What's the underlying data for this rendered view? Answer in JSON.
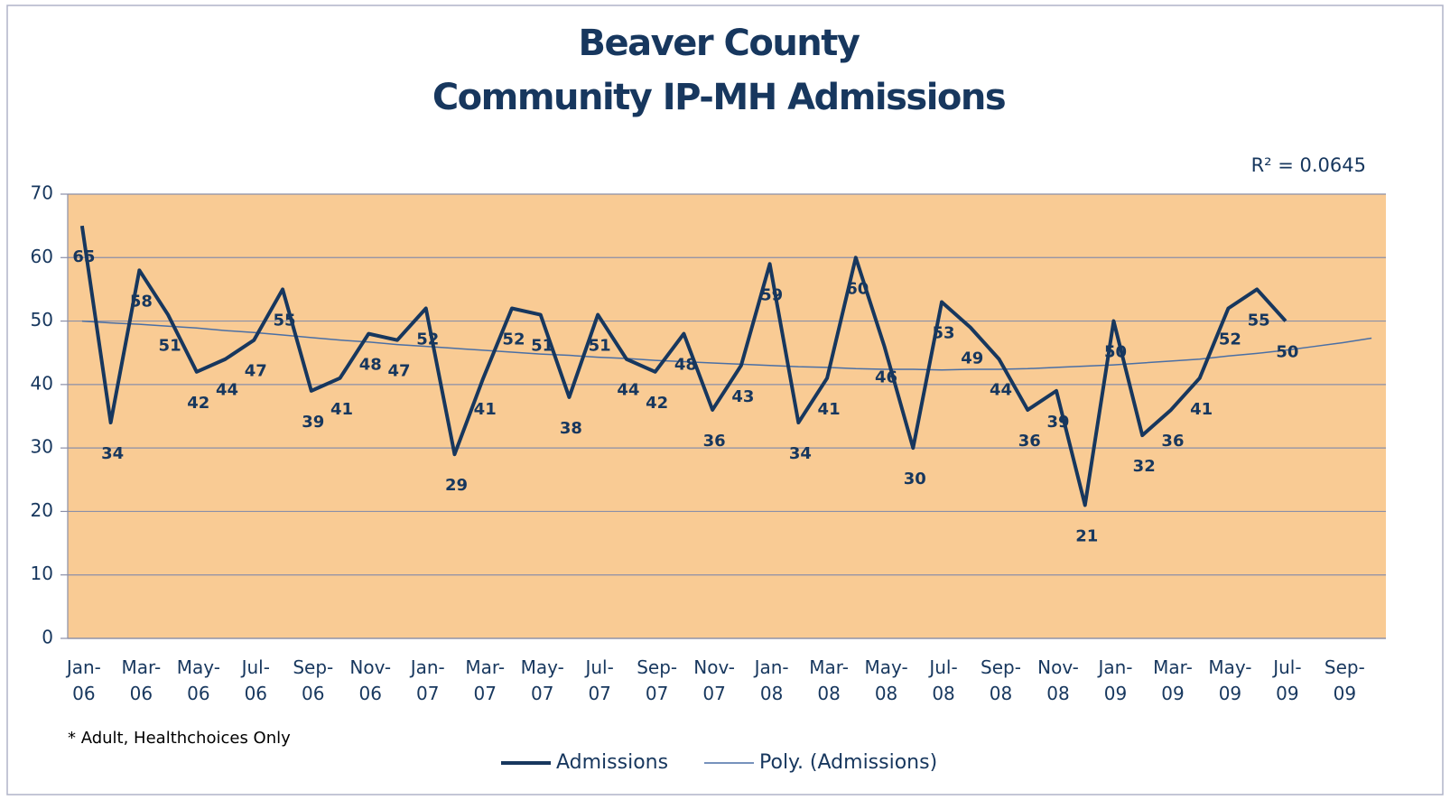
{
  "chart_data": {
    "type": "line",
    "title": "Beaver County",
    "subtitle": "Community IP-MH Admissions",
    "annotation": "R² = 0.0645",
    "footnote": "* Adult, Healthchoices Only",
    "categories": [
      "Jan-06",
      null,
      "Mar-06",
      null,
      "May-06",
      null,
      "Jul-06",
      null,
      "Sep-06",
      null,
      "Nov-06",
      null,
      "Jan-07",
      null,
      "Mar-07",
      null,
      "May-07",
      null,
      "Jul-07",
      null,
      "Sep-07",
      null,
      "Nov-07",
      null,
      "Jan-08",
      null,
      "Mar-08",
      null,
      "May-08",
      null,
      "Jul-08",
      null,
      "Sep-08",
      null,
      "Nov-08",
      null,
      "Jan-09",
      null,
      "Mar-09",
      null,
      "May-09",
      null,
      "Jul-09",
      null,
      "Sep-09",
      null
    ],
    "series": [
      {
        "name": "Admissions",
        "color": "#17375e",
        "data_labels": true,
        "values": [
          65,
          34,
          58,
          51,
          42,
          44,
          47,
          55,
          39,
          41,
          48,
          47,
          52,
          29,
          41,
          52,
          51,
          38,
          51,
          44,
          42,
          48,
          36,
          43,
          59,
          34,
          41,
          60,
          46,
          30,
          53,
          49,
          44,
          36,
          39,
          21,
          50,
          32,
          36,
          41,
          52,
          55,
          50,
          null,
          null,
          null
        ]
      },
      {
        "name": "Poly. (Admissions)",
        "color": "#4a6fa5",
        "data_labels": false,
        "values": [
          50,
          49.7,
          49.5,
          49.2,
          48.9,
          48.5,
          48.2,
          47.8,
          47.4,
          47,
          46.7,
          46.3,
          46,
          45.7,
          45.4,
          45.1,
          44.8,
          44.6,
          44.3,
          44.1,
          43.8,
          43.6,
          43.4,
          43.2,
          43,
          42.8,
          42.7,
          42.5,
          42.4,
          42.4,
          42.3,
          42.4,
          42.4,
          42.5,
          42.7,
          42.9,
          43.1,
          43.4,
          43.7,
          44,
          44.5,
          44.9,
          45.4,
          46,
          46.6,
          47.3
        ]
      }
    ],
    "ylim": [
      0,
      70
    ],
    "yticks": [
      0,
      10,
      20,
      30,
      40,
      50,
      60,
      70
    ],
    "grid": true,
    "plot_background": "#f9cb94",
    "legend": "bottom"
  }
}
